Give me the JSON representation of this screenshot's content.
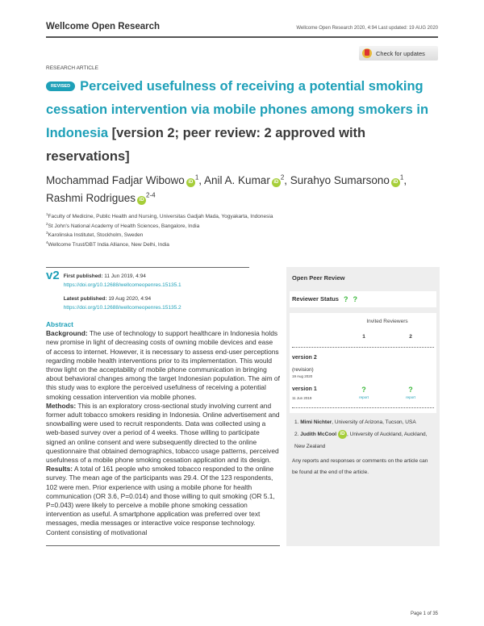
{
  "header": {
    "journal": "Wellcome Open Research",
    "citation": "Wellcome Open Research 2020, 4:94 Last updated: 19 AUG 2020",
    "check_updates": "Check for updates"
  },
  "article_type": "RESEARCH ARTICLE",
  "badge": "REVISED",
  "title": {
    "main": "Perceived usefulness of receiving a potential smoking cessation intervention via mobile phones among smokers in Indonesia",
    "version_note": "[version 2; peer review: 2 approved with reservations]"
  },
  "authors": [
    {
      "name": "Mochammad Fadjar Wibowo",
      "aff": "1"
    },
    {
      "name": "Anil A. Kumar",
      "aff": "2"
    },
    {
      "name": "Surahyo Sumarsono",
      "aff": "1"
    },
    {
      "name": "Rashmi Rodrigues",
      "aff": "2-4"
    }
  ],
  "affiliations": [
    {
      "n": "1",
      "text": "Faculty of Medicine, Public Health and Nursing, Universitas Gadjah Mada, Yogyakarta, Indonesia"
    },
    {
      "n": "2",
      "text": "St John's National Academy of Health Sciences, Bangalore, India"
    },
    {
      "n": "3",
      "text": "Karolinska Institutet, Stockholm, Sweden"
    },
    {
      "n": "4",
      "text": "Wellcome Trust/DBT India Alliance, New Delhi, India"
    }
  ],
  "publication": {
    "version": "v2",
    "first_label": "First published:",
    "first_date": "11 Jun 2019, 4:94",
    "first_doi": "https://doi.org/10.12688/wellcomeopenres.15135.1",
    "latest_label": "Latest published:",
    "latest_date": "19 Aug 2020, 4:94",
    "latest_doi": "https://doi.org/10.12688/wellcomeopenres.15135.2"
  },
  "abstract": {
    "heading": "Abstract",
    "background_label": "Background:",
    "background": " The use of technology to support healthcare in Indonesia holds new promise in light of decreasing costs of owning mobile devices and ease of access to internet. However, it is necessary to assess end-user perceptions regarding mobile health interventions prior to its implementation. This would throw light on the acceptability of mobile phone communication in bringing about behavioral changes among the target Indonesian population. The aim of this study was to explore the perceived usefulness of receiving a potential smoking cessation intervention via mobile phones.",
    "methods_label": "Methods:",
    "methods": " This is an exploratory cross-sectional study involving current and former adult tobacco smokers residing in Indonesia. Online advertisement and snowballing were used to recruit respondents. Data was collected using a web-based survey over a period of 4 weeks. Those willing to participate signed an online consent and were subsequently directed to the online questionnaire that obtained demographics, tobacco usage patterns, perceived usefulness of a mobile phone smoking cessation application and its design.",
    "results_label": "Results:",
    "results": " A total of 161 people who smoked tobacco responded to the online survey. The mean age of the participants was 29.4. Of the 123 respondents, 102 were men. Prior experience with using a mobile phone for health communication (OR 3.6, P=0.014) and those willing to quit smoking (OR 5.1, P=0.043) were likely to perceive a mobile phone smoking cessation intervention as useful. A smartphone application was preferred over text messages, media messages or interactive voice response technology. Content consisting of motivational"
  },
  "peer_review": {
    "heading": "Open Peer Review",
    "status_label": "Reviewer Status",
    "status_icons": [
      "?",
      "?"
    ],
    "invited": "Invited Reviewers",
    "cols": [
      "1",
      "2"
    ],
    "v2_label": "version 2",
    "v2_sub": "(revision)",
    "v2_date": "19 Aug 2020",
    "v1_label": "version 1",
    "v1_date": "11 Jun 2019",
    "report": "report",
    "reviewers": [
      {
        "num": "1.",
        "name": "Mimi Nichter",
        "aff": ", University of Arizona, Tucson, USA"
      },
      {
        "num": "2.",
        "name": "Judith McCool",
        "aff": ", University of Auckland, Auckland, New Zealand"
      }
    ],
    "note": "Any reports and responses or comments on the article can be found at the end of the article."
  },
  "footer": {
    "page": "Page 1 of 35"
  },
  "colors": {
    "accent": "#1ea0b8",
    "orcid": "#a6ce39",
    "status": "#3cb83c"
  }
}
